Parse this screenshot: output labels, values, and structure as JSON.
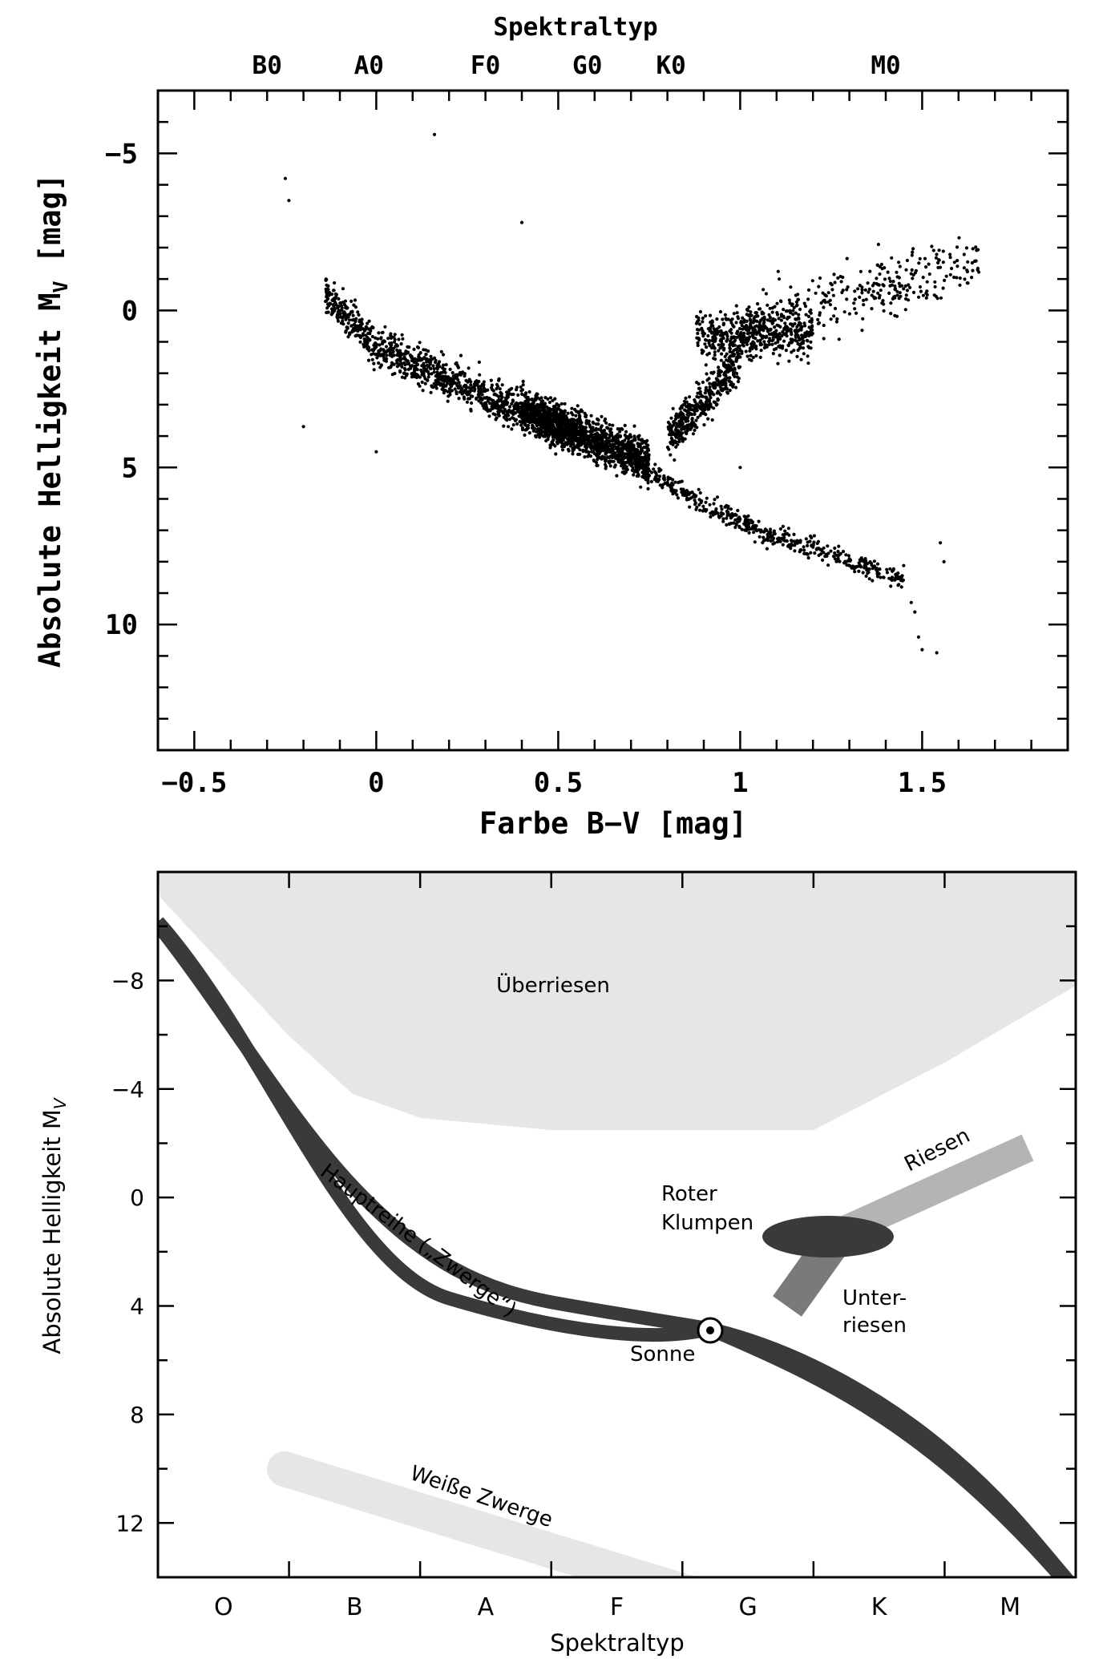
{
  "chart_data": [
    {
      "type": "scatter",
      "title": "",
      "top_axis": {
        "label": "Spektraltyp",
        "ticks": [
          {
            "label": "B0",
            "bv": -0.3
          },
          {
            "label": "A0",
            "bv": -0.02
          },
          {
            "label": "F0",
            "bv": 0.3
          },
          {
            "label": "G0",
            "bv": 0.58
          },
          {
            "label": "K0",
            "bv": 0.81
          },
          {
            "label": "M0",
            "bv": 1.4
          }
        ]
      },
      "xlabel": "Farbe B−V [mag]",
      "ylabel_text": "Absolute Helligkeit M",
      "ylabel_sub": "V",
      "ylabel_unit": " [mag]",
      "xlim": [
        -0.6,
        1.9
      ],
      "ylim": [
        14,
        -7
      ],
      "x_ticks": [
        "−0.5",
        "0",
        "0.5",
        "1",
        "1.5"
      ],
      "x_tick_values": [
        -0.5,
        0,
        0.5,
        1,
        1.5
      ],
      "y_ticks": [
        "−5",
        "0",
        "5",
        "10"
      ],
      "y_tick_values": [
        -5,
        0,
        5,
        10
      ],
      "regions": [
        {
          "name": "main sequence upper",
          "count": 1150,
          "x": [
            -0.14,
            0.55
          ],
          "y_at_x": [
            [
              -0.14,
              -0.5
            ],
            [
              0.0,
              1.2
            ],
            [
              0.2,
              2.2
            ],
            [
              0.4,
              3.2
            ],
            [
              0.55,
              3.9
            ]
          ],
          "spread": 0.55
        },
        {
          "name": "main sequence dense",
          "count": 1300,
          "x": [
            0.4,
            0.75
          ],
          "y_at_x": [
            [
              0.4,
              3.2
            ],
            [
              0.55,
              3.9
            ],
            [
              0.7,
              4.6
            ],
            [
              0.75,
              4.9
            ]
          ],
          "spread": 0.6
        },
        {
          "name": "main sequence lower",
          "count": 500,
          "x": [
            0.7,
            1.45
          ],
          "y_at_x": [
            [
              0.7,
              4.8
            ],
            [
              0.9,
              6.2
            ],
            [
              1.1,
              7.2
            ],
            [
              1.3,
              8.0
            ],
            [
              1.42,
              8.5
            ]
          ],
          "spread": 0.3
        },
        {
          "name": "red clump",
          "count": 450,
          "x": [
            0.88,
            1.2
          ],
          "y_center": 0.8,
          "y_spread": 0.35
        },
        {
          "name": "subgiants",
          "count": 420,
          "x": [
            0.8,
            1.0
          ],
          "y_at_x": [
            [
              0.8,
              4.0
            ],
            [
              0.9,
              3.0
            ],
            [
              1.0,
              1.5
            ]
          ],
          "spread": 0.6
        },
        {
          "name": "giant branch",
          "count": 340,
          "x": [
            1.0,
            1.66
          ],
          "y_at_x": [
            [
              1.0,
              0.5
            ],
            [
              1.3,
              -0.5
            ],
            [
              1.5,
              -1.0
            ],
            [
              1.66,
              -1.5
            ]
          ],
          "spread": 0.8
        },
        {
          "name": "white dwarfs",
          "points": [
            [
              1.47,
              9.3
            ],
            [
              1.48,
              9.6
            ],
            [
              1.49,
              10.4
            ],
            [
              1.5,
              10.8
            ],
            [
              1.54,
              10.9
            ],
            [
              1.55,
              7.4
            ],
            [
              1.56,
              8.0
            ]
          ]
        },
        {
          "name": "outliers",
          "points": [
            [
              0.16,
              -5.6
            ],
            [
              0.4,
              -2.8
            ],
            [
              -0.25,
              -4.2
            ],
            [
              -0.24,
              -3.5
            ],
            [
              -0.2,
              3.7
            ],
            [
              0.0,
              4.5
            ],
            [
              1.38,
              -2.1
            ],
            [
              1.0,
              5.0
            ]
          ]
        }
      ]
    },
    {
      "type": "diagram",
      "title": "",
      "xlabel": "Spektraltyp",
      "ylabel_text": "Absolute Helligkeit M",
      "ylabel_sub": "V",
      "categories": [
        "O",
        "B",
        "A",
        "F",
        "G",
        "K",
        "M"
      ],
      "ylim": [
        14,
        -12
      ],
      "y_ticks": [
        "−8",
        "−4",
        "0",
        "4",
        "8",
        "12"
      ],
      "y_tick_values": [
        -8,
        -4,
        0,
        4,
        8,
        12
      ],
      "regions": [
        {
          "label": "Überriesen",
          "color": "#e6e6e6"
        },
        {
          "label": "Hauptreihe („Zwerge“)",
          "color": "#3a3a3a"
        },
        {
          "label": "Weiße Zwerge",
          "color": "#e6e6e6"
        },
        {
          "label": "Riesen",
          "color": "#b4b4b4"
        },
        {
          "label_lines": [
            "Unter-",
            "riesen"
          ],
          "color": "#7a7a7a"
        },
        {
          "label_lines": [
            "Roter",
            "Klumpen"
          ],
          "color": "#3a3a3a"
        },
        {
          "label": "Sonne",
          "symbol": "sun-symbol"
        }
      ]
    }
  ]
}
